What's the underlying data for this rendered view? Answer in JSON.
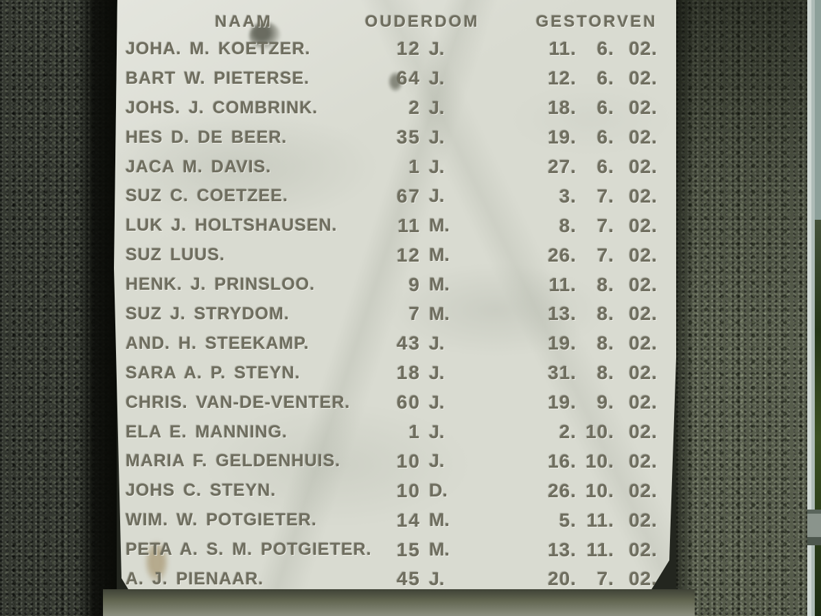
{
  "plaque": {
    "headers": {
      "name": "NAAM",
      "age": "OUDERDOM",
      "died": "GESTORVEN"
    },
    "rows": [
      {
        "name": "JOHA. M. KOETZER.",
        "age": "12",
        "unit": "J.",
        "day": "11.",
        "month": "6.",
        "year": "02."
      },
      {
        "name": "BART W. PIETERSE.",
        "age": "64",
        "unit": "J.",
        "day": "12.",
        "month": "6.",
        "year": "02."
      },
      {
        "name": "JOHS. J. COMBRINK.",
        "age": "2",
        "unit": "J.",
        "day": "18.",
        "month": "6.",
        "year": "02."
      },
      {
        "name": "HES D. DE BEER.",
        "age": "35",
        "unit": "J.",
        "day": "19.",
        "month": "6.",
        "year": "02."
      },
      {
        "name": "JACA M. DAVIS.",
        "age": "1",
        "unit": "J.",
        "day": "27.",
        "month": "6.",
        "year": "02."
      },
      {
        "name": "SUZ C. COETZEE.",
        "age": "67",
        "unit": "J.",
        "day": "3.",
        "month": "7.",
        "year": "02."
      },
      {
        "name": "LUK J. HOLTSHAUSEN.",
        "age": "11",
        "unit": "M.",
        "day": "8.",
        "month": "7.",
        "year": "02."
      },
      {
        "name": "SUZ LUUS.",
        "age": "12",
        "unit": "M.",
        "day": "26.",
        "month": "7.",
        "year": "02."
      },
      {
        "name": "HENK. J. PRINSLOO.",
        "age": "9",
        "unit": "M.",
        "day": "11.",
        "month": "8.",
        "year": "02."
      },
      {
        "name": "SUZ J. STRYDOM.",
        "age": "7",
        "unit": "M.",
        "day": "13.",
        "month": "8.",
        "year": "02."
      },
      {
        "name": "AND. H. STEEKAMP.",
        "age": "43",
        "unit": "J.",
        "day": "19.",
        "month": "8.",
        "year": "02."
      },
      {
        "name": "SARA A. P. STEYN.",
        "age": "18",
        "unit": "J.",
        "day": "31.",
        "month": "8.",
        "year": "02."
      },
      {
        "name": "CHRIS. VAN-DE-VENTER.",
        "age": "60",
        "unit": "J.",
        "day": "19.",
        "month": "9.",
        "year": "02."
      },
      {
        "name": "ELA E. MANNING.",
        "age": "1",
        "unit": "J.",
        "day": "2.",
        "month": "10.",
        "year": "02."
      },
      {
        "name": "MARIA F. GELDENHUIS.",
        "age": "10",
        "unit": "J.",
        "day": "16.",
        "month": "10.",
        "year": "02."
      },
      {
        "name": "JOHS C. STEYN.",
        "age": "10",
        "unit": "D.",
        "day": "26.",
        "month": "10.",
        "year": "02."
      },
      {
        "name": "WIM. W. POTGIETER.",
        "age": "14",
        "unit": "M.",
        "day": "5.",
        "month": "11.",
        "year": "02."
      },
      {
        "name": "PETA A. S. M. POTGIETER.",
        "age": "15",
        "unit": "M.",
        "day": "13.",
        "month": "11.",
        "year": "02."
      },
      {
        "name": "A. J. PIENAAR.",
        "age": "45",
        "unit": "J.",
        "day": "20.",
        "month": "7.",
        "year": "02."
      }
    ]
  },
  "colors": {
    "marble": "#d9dbd1",
    "engraving": "#6f6e5f",
    "granite_dark": "#343830",
    "granite_light": "#565c4b",
    "edge_shadow": "#0a0b07",
    "background_strip": "#aebbb7",
    "vegetation": "#243618",
    "bottom_band": "#60644f"
  }
}
